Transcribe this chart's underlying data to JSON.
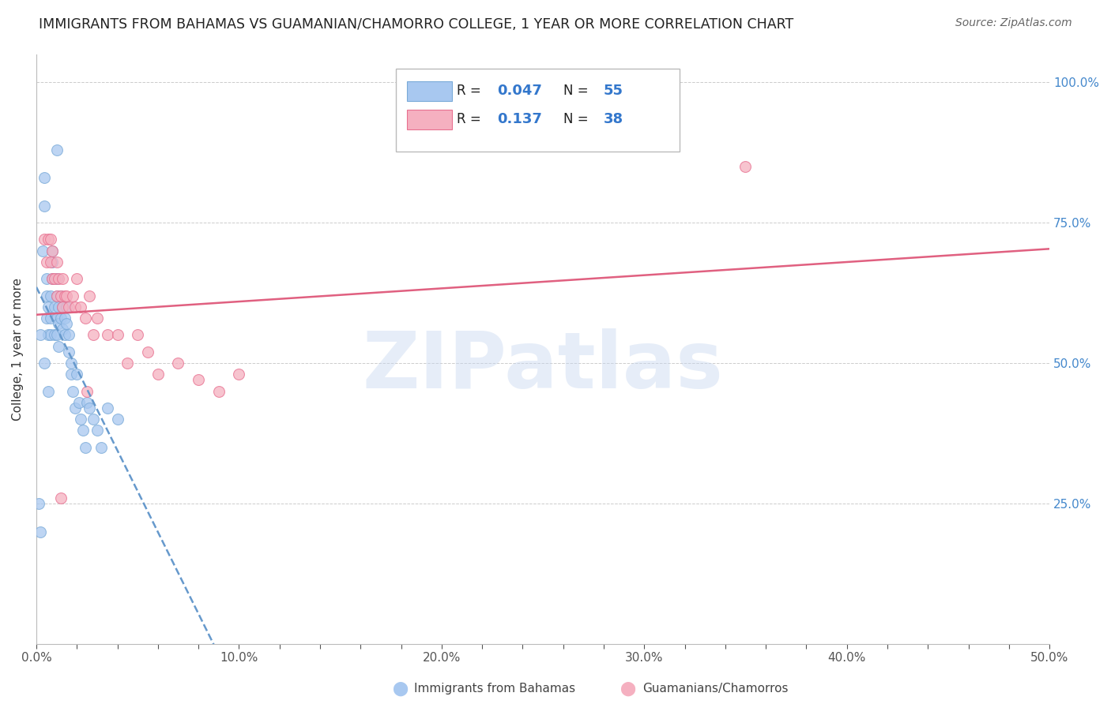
{
  "title": "IMMIGRANTS FROM BAHAMAS VS GUAMANIAN/CHAMORRO COLLEGE, 1 YEAR OR MORE CORRELATION CHART",
  "source": "Source: ZipAtlas.com",
  "ylabel": "College, 1 year or more",
  "xlim": [
    0.0,
    0.5
  ],
  "ylim": [
    0.0,
    1.05
  ],
  "xtick_labels": [
    "0.0%",
    "",
    "",
    "",
    "",
    "10.0%",
    "",
    "",
    "",
    "",
    "20.0%",
    "",
    "",
    "",
    "",
    "30.0%",
    "",
    "",
    "",
    "",
    "40.0%",
    "",
    "",
    "",
    "",
    "50.0%"
  ],
  "xtick_vals": [
    0.0,
    0.02,
    0.04,
    0.06,
    0.08,
    0.1,
    0.12,
    0.14,
    0.16,
    0.18,
    0.2,
    0.22,
    0.24,
    0.26,
    0.28,
    0.3,
    0.32,
    0.34,
    0.36,
    0.38,
    0.4,
    0.42,
    0.44,
    0.46,
    0.48,
    0.5
  ],
  "ytick_labels": [
    "25.0%",
    "50.0%",
    "75.0%",
    "100.0%"
  ],
  "ytick_vals": [
    0.25,
    0.5,
    0.75,
    1.0
  ],
  "series1_color": "#a8c8f0",
  "series1_edge": "#7aaad8",
  "series2_color": "#f5b0c0",
  "series2_edge": "#e87090",
  "R1": 0.047,
  "N1": 55,
  "R2": 0.137,
  "N2": 38,
  "legend_label1": "Immigrants from Bahamas",
  "legend_label2": "Guamanians/Chamorros",
  "watermark": "ZIPatlas",
  "watermark_color": "#c8d8f0",
  "trend1_color": "#6699cc",
  "trend2_color": "#e06080",
  "blue_scatter_x": [
    0.001,
    0.002,
    0.003,
    0.004,
    0.004,
    0.005,
    0.005,
    0.005,
    0.006,
    0.006,
    0.007,
    0.007,
    0.007,
    0.008,
    0.008,
    0.008,
    0.009,
    0.009,
    0.01,
    0.01,
    0.01,
    0.01,
    0.011,
    0.011,
    0.011,
    0.012,
    0.012,
    0.013,
    0.013,
    0.014,
    0.014,
    0.015,
    0.015,
    0.016,
    0.016,
    0.017,
    0.017,
    0.018,
    0.019,
    0.02,
    0.021,
    0.022,
    0.023,
    0.024,
    0.025,
    0.026,
    0.028,
    0.03,
    0.032,
    0.035,
    0.002,
    0.004,
    0.006,
    0.04,
    0.01
  ],
  "blue_scatter_y": [
    0.25,
    0.2,
    0.7,
    0.83,
    0.78,
    0.58,
    0.65,
    0.62,
    0.6,
    0.55,
    0.62,
    0.58,
    0.55,
    0.7,
    0.68,
    0.65,
    0.6,
    0.55,
    0.65,
    0.62,
    0.58,
    0.55,
    0.6,
    0.57,
    0.53,
    0.62,
    0.58,
    0.6,
    0.56,
    0.58,
    0.55,
    0.6,
    0.57,
    0.55,
    0.52,
    0.5,
    0.48,
    0.45,
    0.42,
    0.48,
    0.43,
    0.4,
    0.38,
    0.35,
    0.43,
    0.42,
    0.4,
    0.38,
    0.35,
    0.42,
    0.55,
    0.5,
    0.45,
    0.4,
    0.88
  ],
  "pink_scatter_x": [
    0.004,
    0.005,
    0.006,
    0.007,
    0.007,
    0.008,
    0.008,
    0.009,
    0.01,
    0.01,
    0.011,
    0.012,
    0.013,
    0.013,
    0.014,
    0.015,
    0.016,
    0.018,
    0.019,
    0.02,
    0.022,
    0.024,
    0.026,
    0.028,
    0.03,
    0.035,
    0.04,
    0.045,
    0.05,
    0.055,
    0.06,
    0.07,
    0.08,
    0.09,
    0.1,
    0.35,
    0.012,
    0.025
  ],
  "pink_scatter_y": [
    0.72,
    0.68,
    0.72,
    0.72,
    0.68,
    0.7,
    0.65,
    0.65,
    0.68,
    0.62,
    0.65,
    0.62,
    0.65,
    0.6,
    0.62,
    0.62,
    0.6,
    0.62,
    0.6,
    0.65,
    0.6,
    0.58,
    0.62,
    0.55,
    0.58,
    0.55,
    0.55,
    0.5,
    0.55,
    0.52,
    0.48,
    0.5,
    0.47,
    0.45,
    0.48,
    0.85,
    0.26,
    0.45
  ]
}
